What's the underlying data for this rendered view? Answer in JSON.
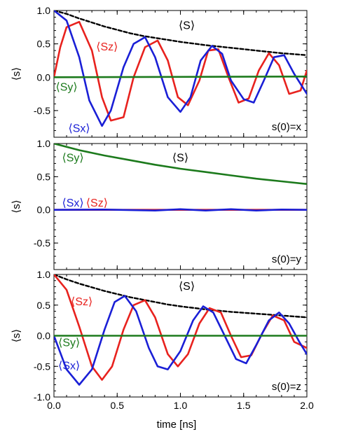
{
  "chart_data": [
    {
      "type": "line",
      "panel_label": "s(0)=x",
      "ylabel": "⟨s⟩",
      "xlabel": "",
      "xlim": [
        0,
        2.0
      ],
      "ylim": [
        -0.9,
        1.0
      ],
      "x_ticks": [
        "0.0",
        "0.5",
        "1.0",
        "1.5",
        "2.0"
      ],
      "y_ticks": [
        "1.0",
        "0.5",
        "0.0",
        "-0.5"
      ],
      "x_tick_values": [
        0,
        0.5,
        1.0,
        1.5,
        2.0
      ],
      "y_tick_values": [
        1.0,
        0.5,
        0.0,
        -0.5
      ],
      "series": [
        {
          "name": "⟨S⟩",
          "color": "#000000",
          "dash": true,
          "x": [
            0,
            0.1,
            0.2,
            0.3,
            0.4,
            0.5,
            0.6,
            0.7,
            0.8,
            0.9,
            1.0,
            1.2,
            1.4,
            1.6,
            1.8,
            2.0
          ],
          "y": [
            1.0,
            0.95,
            0.88,
            0.82,
            0.76,
            0.71,
            0.66,
            0.62,
            0.59,
            0.56,
            0.53,
            0.48,
            0.44,
            0.4,
            0.36,
            0.33
          ]
        },
        {
          "name": "⟨Sz⟩",
          "color": "#e8221e",
          "dash": false,
          "x": [
            0,
            0.05,
            0.1,
            0.2,
            0.3,
            0.38,
            0.45,
            0.55,
            0.63,
            0.72,
            0.82,
            0.9,
            0.98,
            1.06,
            1.15,
            1.22,
            1.3,
            1.38,
            1.46,
            1.54,
            1.62,
            1.7,
            1.78,
            1.86,
            1.95,
            2.0
          ],
          "y": [
            0,
            0.45,
            0.75,
            0.83,
            0.4,
            -0.3,
            -0.65,
            -0.6,
            0.0,
            0.45,
            0.55,
            0.25,
            -0.3,
            -0.42,
            -0.05,
            0.4,
            0.42,
            0.0,
            -0.38,
            -0.32,
            0.1,
            0.36,
            0.18,
            -0.25,
            -0.2,
            0.1
          ]
        },
        {
          "name": "⟨Sx⟩",
          "color": "#1a1fd6",
          "dash": false,
          "x": [
            0,
            0.1,
            0.2,
            0.28,
            0.38,
            0.45,
            0.55,
            0.63,
            0.72,
            0.8,
            0.9,
            1.0,
            1.08,
            1.16,
            1.25,
            1.33,
            1.4,
            1.5,
            1.58,
            1.66,
            1.74,
            1.82,
            1.9,
            2.0
          ],
          "y": [
            1.0,
            0.85,
            0.3,
            -0.35,
            -0.73,
            -0.5,
            0.15,
            0.5,
            0.6,
            0.3,
            -0.3,
            -0.52,
            -0.3,
            0.25,
            0.47,
            0.35,
            -0.05,
            -0.33,
            -0.38,
            -0.05,
            0.3,
            0.33,
            0.05,
            -0.25
          ]
        },
        {
          "name": "⟨Sy⟩",
          "color": "#1c7a1c",
          "dash": false,
          "x": [
            0,
            2.0
          ],
          "y": [
            0,
            0.01
          ]
        }
      ],
      "annotations": [
        {
          "text": "⟨S⟩",
          "color": "#000000",
          "x": 1.05,
          "y": 0.72
        },
        {
          "text": "⟨Sz⟩",
          "color": "#e8221e",
          "x": 0.42,
          "y": 0.4
        },
        {
          "text": "⟨Sy⟩",
          "color": "#1c7a1c",
          "x": 0.1,
          "y": -0.2
        },
        {
          "text": "⟨Sx⟩",
          "color": "#1a1fd6",
          "x": 0.2,
          "y": -0.82
        }
      ]
    },
    {
      "type": "line",
      "panel_label": "s(0)=y",
      "ylabel": "⟨s⟩",
      "xlabel": "",
      "xlim": [
        0,
        2.0
      ],
      "ylim": [
        -0.9,
        1.0
      ],
      "x_ticks": [
        "0.0",
        "0.5",
        "1.0",
        "1.5",
        "2.0"
      ],
      "y_ticks": [
        "1.0",
        "0.5",
        "0.0",
        "-0.5"
      ],
      "x_tick_values": [
        0,
        0.5,
        1.0,
        1.5,
        2.0
      ],
      "y_tick_values": [
        1.0,
        0.5,
        0.0,
        -0.5
      ],
      "series": [
        {
          "name": "⟨Sy⟩",
          "color": "#1c7a1c",
          "dash": false,
          "x": [
            0,
            0.2,
            0.4,
            0.6,
            0.8,
            1.0,
            1.2,
            1.4,
            1.6,
            1.8,
            2.0
          ],
          "y": [
            1.0,
            0.9,
            0.82,
            0.75,
            0.68,
            0.62,
            0.57,
            0.52,
            0.47,
            0.43,
            0.39
          ]
        },
        {
          "name": "⟨Sz⟩",
          "color": "#e8221e",
          "dash": false,
          "x": [
            0,
            2.0
          ],
          "y": [
            0,
            0
          ]
        },
        {
          "name": "⟨Sx⟩",
          "color": "#1a1fd6",
          "dash": false,
          "x": [
            0,
            0.4,
            0.8,
            1.0,
            1.2,
            1.4,
            1.6,
            1.8,
            2.0
          ],
          "y": [
            0,
            0.005,
            -0.01,
            0.01,
            -0.01,
            0.01,
            -0.01,
            0.005,
            0
          ]
        }
      ],
      "annotations": [
        {
          "text": "⟨Sy⟩",
          "color": "#1c7a1c",
          "x": 0.15,
          "y": 0.73
        },
        {
          "text": "⟨S⟩",
          "color": "#000000",
          "x": 1.0,
          "y": 0.73
        },
        {
          "text": "⟨Sx⟩",
          "color": "#1a1fd6",
          "x": 0.15,
          "y": 0.05
        },
        {
          "text": "⟨Sz⟩",
          "color": "#e8221e",
          "x": 0.34,
          "y": 0.05
        }
      ]
    },
    {
      "type": "line",
      "panel_label": "s(0)=z",
      "ylabel": "⟨s⟩",
      "xlabel": "time [ns]",
      "xlim": [
        0,
        2.0
      ],
      "ylim": [
        -1.0,
        1.0
      ],
      "x_ticks": [
        "0.0",
        "0.5",
        "1.0",
        "1.5",
        "2.0"
      ],
      "y_ticks": [
        "1.0",
        "0.5",
        "0.0",
        "-0.5",
        "-1.0"
      ],
      "x_tick_values": [
        0,
        0.5,
        1.0,
        1.5,
        2.0
      ],
      "y_tick_values": [
        1.0,
        0.5,
        0.0,
        -0.5,
        -1.0
      ],
      "series": [
        {
          "name": "⟨S⟩",
          "color": "#000000",
          "dash": true,
          "x": [
            0,
            0.1,
            0.2,
            0.3,
            0.4,
            0.5,
            0.6,
            0.7,
            0.8,
            0.9,
            1.0,
            1.2,
            1.4,
            1.6,
            1.8,
            2.0
          ],
          "y": [
            1.0,
            0.92,
            0.85,
            0.79,
            0.73,
            0.68,
            0.63,
            0.59,
            0.55,
            0.51,
            0.48,
            0.43,
            0.39,
            0.36,
            0.33,
            0.3
          ]
        },
        {
          "name": "⟨Sz⟩",
          "color": "#e8221e",
          "dash": false,
          "x": [
            0,
            0.1,
            0.2,
            0.3,
            0.38,
            0.46,
            0.55,
            0.63,
            0.72,
            0.8,
            0.9,
            0.98,
            1.06,
            1.15,
            1.23,
            1.32,
            1.4,
            1.48,
            1.56,
            1.65,
            1.73,
            1.82,
            1.9,
            2.0
          ],
          "y": [
            1.0,
            0.75,
            0.15,
            -0.5,
            -0.72,
            -0.5,
            0.1,
            0.5,
            0.58,
            0.3,
            -0.3,
            -0.5,
            -0.3,
            0.2,
            0.45,
            0.38,
            0.0,
            -0.35,
            -0.32,
            0.05,
            0.33,
            0.25,
            -0.1,
            -0.2
          ]
        },
        {
          "name": "⟨Sx⟩",
          "color": "#1a1fd6",
          "dash": false,
          "x": [
            0,
            0.1,
            0.2,
            0.3,
            0.4,
            0.48,
            0.56,
            0.65,
            0.75,
            0.82,
            0.9,
            1.0,
            1.1,
            1.18,
            1.26,
            1.35,
            1.44,
            1.52,
            1.6,
            1.7,
            1.78,
            1.86,
            1.94,
            2.0
          ],
          "y": [
            0,
            -0.55,
            -0.8,
            -0.55,
            0.1,
            0.55,
            0.65,
            0.4,
            -0.2,
            -0.5,
            -0.55,
            -0.25,
            0.25,
            0.48,
            0.38,
            0.0,
            -0.38,
            -0.45,
            -0.15,
            0.25,
            0.38,
            0.2,
            -0.1,
            -0.3
          ]
        },
        {
          "name": "⟨Sy⟩",
          "color": "#1c7a1c",
          "dash": false,
          "x": [
            0,
            2.0
          ],
          "y": [
            0,
            0.0
          ]
        }
      ],
      "annotations": [
        {
          "text": "⟨S⟩",
          "color": "#000000",
          "x": 1.05,
          "y": 0.75
        },
        {
          "text": "⟨Sz⟩",
          "color": "#e8221e",
          "x": 0.22,
          "y": 0.5
        },
        {
          "text": "⟨Sy⟩",
          "color": "#1c7a1c",
          "x": 0.12,
          "y": -0.17
        },
        {
          "text": "⟨Sx⟩",
          "color": "#1a1fd6",
          "x": 0.12,
          "y": -0.55
        }
      ]
    }
  ]
}
